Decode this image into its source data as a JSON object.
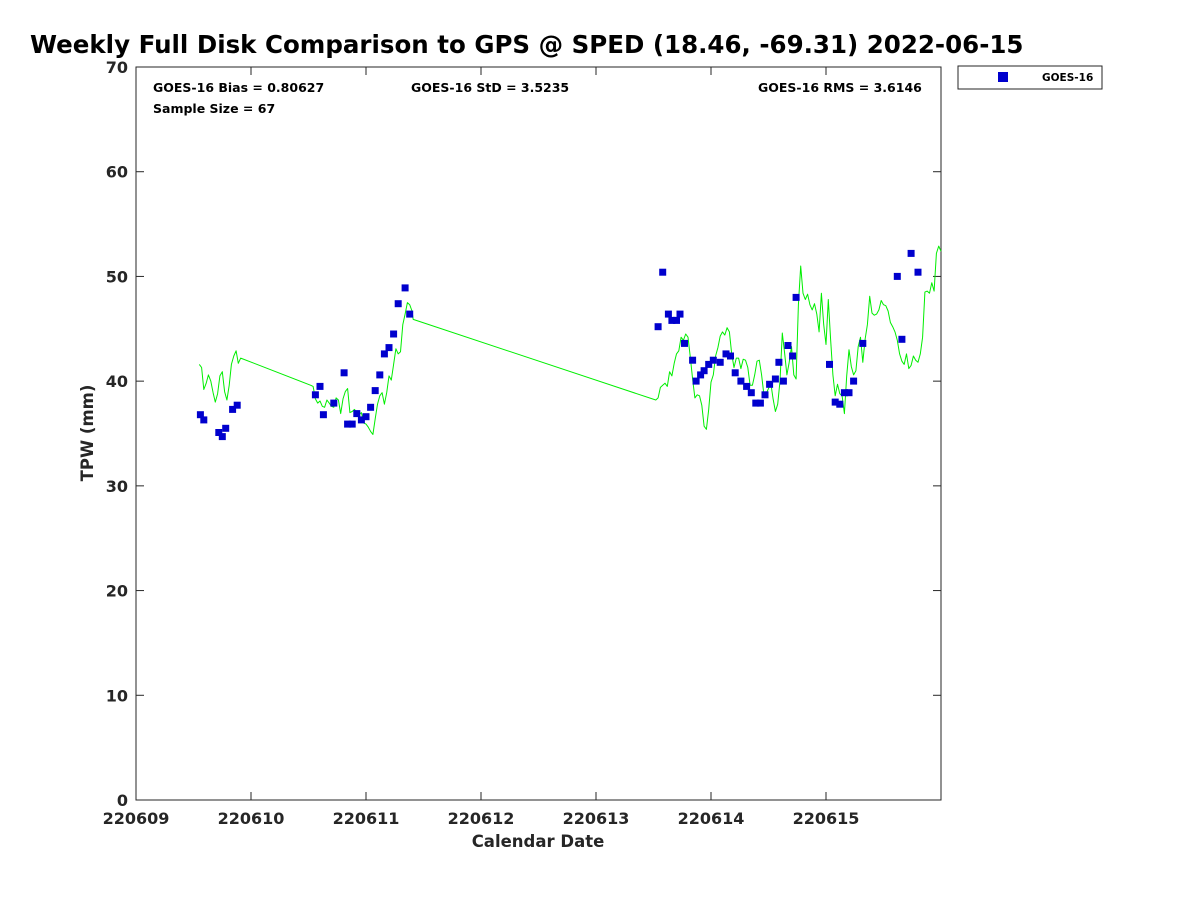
{
  "title": "Weekly Full Disk Comparison to GPS @ SPED (18.46, -69.31) 2022-06-15",
  "stats": {
    "bias": "GOES-16 Bias = 0.80627",
    "std": "GOES-16 StD = 3.5235",
    "rms": "GOES-16 RMS = 3.6146",
    "sample": "Sample Size = 67"
  },
  "legend": {
    "label": "GOES-16",
    "marker_color": "#0000cd"
  },
  "chart_data": {
    "type": "scatter",
    "xlabel": "Calendar Date",
    "ylabel": "TPW (mm)",
    "xlim": [
      0,
      7
    ],
    "ylim": [
      0,
      70
    ],
    "grid": false,
    "legend_position": "top-right, outside plot",
    "x_tick_values": [
      0,
      1,
      2,
      3,
      4,
      5,
      6
    ],
    "x_tick_labels": [
      "220609",
      "220610",
      "220611",
      "220612",
      "220613",
      "220614",
      "220615"
    ],
    "y_ticks": [
      0,
      10,
      20,
      30,
      40,
      50,
      60,
      70
    ],
    "series": [
      {
        "name": "GOES-16",
        "kind": "scatter",
        "color": "#0000cd",
        "marker": "square",
        "points": [
          [
            0.56,
            36.8
          ],
          [
            0.59,
            36.3
          ],
          [
            0.72,
            35.1
          ],
          [
            0.75,
            34.7
          ],
          [
            0.78,
            35.5
          ],
          [
            0.84,
            37.3
          ],
          [
            0.88,
            37.7
          ],
          [
            1.56,
            38.7
          ],
          [
            1.6,
            39.5
          ],
          [
            1.63,
            36.8
          ],
          [
            1.72,
            37.9
          ],
          [
            1.81,
            40.8
          ],
          [
            1.84,
            35.9
          ],
          [
            1.88,
            35.9
          ],
          [
            1.92,
            36.9
          ],
          [
            1.96,
            36.3
          ],
          [
            2.0,
            36.6
          ],
          [
            2.04,
            37.5
          ],
          [
            2.08,
            39.1
          ],
          [
            2.12,
            40.6
          ],
          [
            2.16,
            42.6
          ],
          [
            2.2,
            43.2
          ],
          [
            2.24,
            44.5
          ],
          [
            2.28,
            47.4
          ],
          [
            2.34,
            48.9
          ],
          [
            2.38,
            46.4
          ],
          [
            4.54,
            45.2
          ],
          [
            4.58,
            50.4
          ],
          [
            4.63,
            46.4
          ],
          [
            4.66,
            45.8
          ],
          [
            4.7,
            45.8
          ],
          [
            4.73,
            46.4
          ],
          [
            4.77,
            43.6
          ],
          [
            4.84,
            42.0
          ],
          [
            4.87,
            40.0
          ],
          [
            4.91,
            40.6
          ],
          [
            4.94,
            41.0
          ],
          [
            4.98,
            41.6
          ],
          [
            5.02,
            42.0
          ],
          [
            5.08,
            41.8
          ],
          [
            5.13,
            42.6
          ],
          [
            5.17,
            42.4
          ],
          [
            5.21,
            40.8
          ],
          [
            5.26,
            40.0
          ],
          [
            5.31,
            39.5
          ],
          [
            5.35,
            38.9
          ],
          [
            5.39,
            37.9
          ],
          [
            5.43,
            37.9
          ],
          [
            5.47,
            38.7
          ],
          [
            5.51,
            39.7
          ],
          [
            5.56,
            40.2
          ],
          [
            5.59,
            41.8
          ],
          [
            5.63,
            40.0
          ],
          [
            5.67,
            43.4
          ],
          [
            5.71,
            42.4
          ],
          [
            5.74,
            48.0
          ],
          [
            6.03,
            41.6
          ],
          [
            6.08,
            38.0
          ],
          [
            6.12,
            37.8
          ],
          [
            6.16,
            38.9
          ],
          [
            6.2,
            38.9
          ],
          [
            6.24,
            40.0
          ],
          [
            6.32,
            43.6
          ],
          [
            6.62,
            50.0
          ],
          [
            6.66,
            44.0
          ],
          [
            6.74,
            52.2
          ],
          [
            6.8,
            50.4
          ]
        ]
      },
      {
        "name": "GPS",
        "kind": "line",
        "color": "#00ee00",
        "segments": [
          [
            [
              0.55,
              41.6
            ],
            [
              0.57,
              41.3
            ],
            [
              0.59,
              39.2
            ],
            [
              0.61,
              39.8
            ],
            [
              0.63,
              40.6
            ],
            [
              0.65,
              40.0
            ],
            [
              0.67,
              38.9
            ],
            [
              0.69,
              38.0
            ],
            [
              0.71,
              38.8
            ],
            [
              0.73,
              40.5
            ],
            [
              0.75,
              40.9
            ],
            [
              0.77,
              39.0
            ],
            [
              0.79,
              38.2
            ],
            [
              0.81,
              39.6
            ],
            [
              0.83,
              41.6
            ],
            [
              0.85,
              42.4
            ],
            [
              0.87,
              42.9
            ],
            [
              0.89,
              41.7
            ],
            [
              0.91,
              42.2
            ],
            [
              1.52,
              39.6
            ],
            [
              1.54,
              39.5
            ],
            [
              1.56,
              38.3
            ],
            [
              1.58,
              37.9
            ],
            [
              1.6,
              38.1
            ],
            [
              1.62,
              37.6
            ],
            [
              1.64,
              37.5
            ],
            [
              1.66,
              38.2
            ],
            [
              1.68,
              37.9
            ],
            [
              1.7,
              37.6
            ],
            [
              1.72,
              37.5
            ],
            [
              1.74,
              38.4
            ],
            [
              1.76,
              38.2
            ],
            [
              1.78,
              36.9
            ],
            [
              1.8,
              38.3
            ],
            [
              1.82,
              39.0
            ],
            [
              1.84,
              39.3
            ],
            [
              1.86,
              37.0
            ],
            [
              1.88,
              37.1
            ],
            [
              1.9,
              37.3
            ],
            [
              1.92,
              37.0
            ],
            [
              1.94,
              36.8
            ],
            [
              1.96,
              37.0
            ],
            [
              1.98,
              36.0
            ],
            [
              2.0,
              35.9
            ],
            [
              2.02,
              35.6
            ],
            [
              2.04,
              35.2
            ],
            [
              2.06,
              34.9
            ],
            [
              2.08,
              36.4
            ],
            [
              2.1,
              37.8
            ],
            [
              2.12,
              38.6
            ],
            [
              2.14,
              38.9
            ],
            [
              2.16,
              37.8
            ],
            [
              2.18,
              38.9
            ],
            [
              2.2,
              40.5
            ],
            [
              2.22,
              40.1
            ],
            [
              2.24,
              41.6
            ],
            [
              2.26,
              43.1
            ],
            [
              2.28,
              42.6
            ],
            [
              2.3,
              42.8
            ],
            [
              2.32,
              45.4
            ],
            [
              2.34,
              46.4
            ],
            [
              2.36,
              47.5
            ],
            [
              2.38,
              47.3
            ],
            [
              2.4,
              46.7
            ],
            [
              2.41,
              45.9
            ],
            [
              4.52,
              38.2
            ],
            [
              4.54,
              38.4
            ],
            [
              4.56,
              39.4
            ],
            [
              4.58,
              39.6
            ],
            [
              4.6,
              39.8
            ],
            [
              4.62,
              39.5
            ],
            [
              4.64,
              40.9
            ],
            [
              4.66,
              40.5
            ],
            [
              4.68,
              41.7
            ],
            [
              4.7,
              42.6
            ],
            [
              4.72,
              42.9
            ],
            [
              4.74,
              44.2
            ],
            [
              4.76,
              43.9
            ],
            [
              4.78,
              44.5
            ],
            [
              4.8,
              44.2
            ],
            [
              4.82,
              42.3
            ],
            [
              4.84,
              40.2
            ],
            [
              4.86,
              38.4
            ],
            [
              4.88,
              38.7
            ],
            [
              4.9,
              38.6
            ],
            [
              4.92,
              37.7
            ],
            [
              4.94,
              35.7
            ],
            [
              4.96,
              35.4
            ],
            [
              4.98,
              37.3
            ],
            [
              5.0,
              39.9
            ],
            [
              5.02,
              40.6
            ],
            [
              5.04,
              42.4
            ],
            [
              5.06,
              43.2
            ],
            [
              5.08,
              44.3
            ],
            [
              5.1,
              44.7
            ],
            [
              5.12,
              44.4
            ],
            [
              5.14,
              45.1
            ],
            [
              5.16,
              44.7
            ],
            [
              5.18,
              42.6
            ],
            [
              5.2,
              41.3
            ],
            [
              5.22,
              42.2
            ],
            [
              5.24,
              42.2
            ],
            [
              5.26,
              41.2
            ],
            [
              5.28,
              42.1
            ],
            [
              5.3,
              42.0
            ],
            [
              5.32,
              41.3
            ],
            [
              5.34,
              39.6
            ],
            [
              5.36,
              39.6
            ],
            [
              5.38,
              40.6
            ],
            [
              5.4,
              41.9
            ],
            [
              5.42,
              42.0
            ],
            [
              5.44,
              40.6
            ],
            [
              5.46,
              38.7
            ],
            [
              5.48,
              38.8
            ],
            [
              5.5,
              39.3
            ],
            [
              5.52,
              39.8
            ],
            [
              5.54,
              38.3
            ],
            [
              5.56,
              37.1
            ],
            [
              5.58,
              37.8
            ],
            [
              5.6,
              40.0
            ],
            [
              5.62,
              44.6
            ],
            [
              5.64,
              42.7
            ],
            [
              5.66,
              40.6
            ],
            [
              5.68,
              41.8
            ],
            [
              5.7,
              43.3
            ],
            [
              5.72,
              40.6
            ],
            [
              5.74,
              40.2
            ],
            [
              5.76,
              47.3
            ],
            [
              5.78,
              51.0
            ],
            [
              5.8,
              48.4
            ],
            [
              5.82,
              47.8
            ],
            [
              5.84,
              48.3
            ],
            [
              5.86,
              47.3
            ],
            [
              5.88,
              46.8
            ],
            [
              5.9,
              47.4
            ],
            [
              5.92,
              46.4
            ],
            [
              5.94,
              44.7
            ],
            [
              5.96,
              48.4
            ],
            [
              5.98,
              45.4
            ],
            [
              6.0,
              43.5
            ],
            [
              6.02,
              47.8
            ],
            [
              6.04,
              44.0
            ],
            [
              6.06,
              40.6
            ],
            [
              6.08,
              38.6
            ],
            [
              6.1,
              39.7
            ],
            [
              6.12,
              38.8
            ],
            [
              6.14,
              38.6
            ],
            [
              6.16,
              36.9
            ],
            [
              6.18,
              40.5
            ],
            [
              6.2,
              43.0
            ],
            [
              6.22,
              41.4
            ],
            [
              6.24,
              40.6
            ],
            [
              6.26,
              41.0
            ],
            [
              6.28,
              43.3
            ],
            [
              6.3,
              44.2
            ],
            [
              6.32,
              41.8
            ],
            [
              6.34,
              44.0
            ],
            [
              6.36,
              45.4
            ],
            [
              6.38,
              48.1
            ],
            [
              6.4,
              46.5
            ],
            [
              6.42,
              46.3
            ],
            [
              6.44,
              46.4
            ],
            [
              6.46,
              46.8
            ],
            [
              6.48,
              47.7
            ],
            [
              6.5,
              47.3
            ],
            [
              6.52,
              47.2
            ],
            [
              6.54,
              46.7
            ],
            [
              6.56,
              45.6
            ],
            [
              6.58,
              45.2
            ],
            [
              6.6,
              44.7
            ],
            [
              6.62,
              43.9
            ],
            [
              6.64,
              42.6
            ],
            [
              6.66,
              41.9
            ],
            [
              6.68,
              41.6
            ],
            [
              6.7,
              42.6
            ],
            [
              6.72,
              41.2
            ],
            [
              6.74,
              41.5
            ],
            [
              6.76,
              42.4
            ],
            [
              6.78,
              42.0
            ],
            [
              6.8,
              41.8
            ],
            [
              6.82,
              42.6
            ],
            [
              6.84,
              44.2
            ],
            [
              6.86,
              48.5
            ],
            [
              6.88,
              48.6
            ],
            [
              6.9,
              48.4
            ],
            [
              6.92,
              49.4
            ],
            [
              6.94,
              48.6
            ],
            [
              6.96,
              52.2
            ],
            [
              6.98,
              52.9
            ],
            [
              7.0,
              52.4
            ]
          ]
        ]
      }
    ]
  }
}
